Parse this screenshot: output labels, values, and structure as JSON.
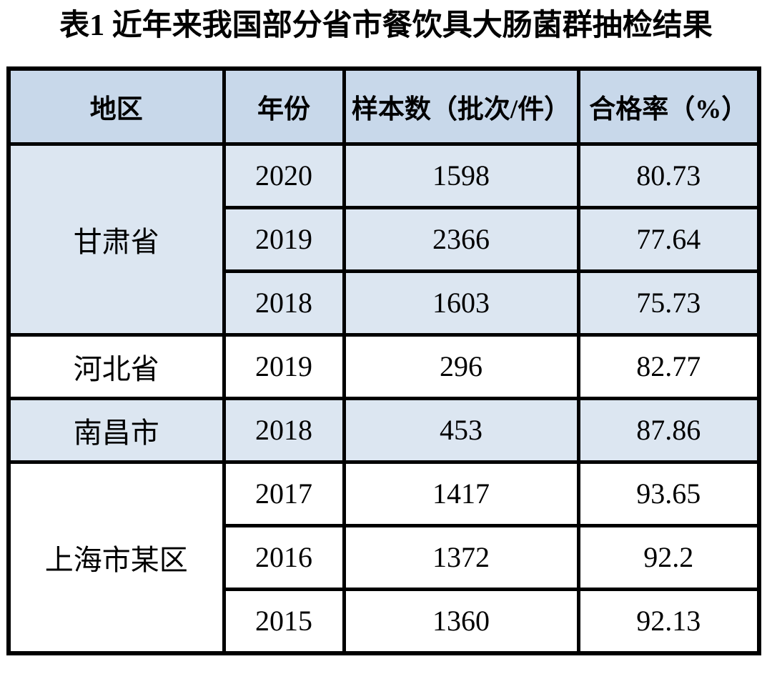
{
  "title": "表1 近年来我国部分省市餐饮具大肠菌群抽检结果",
  "table": {
    "columns": [
      "地区",
      "年份",
      "样本数（批次/件）",
      "合格率（%）"
    ],
    "groups": [
      {
        "region": "甘肃省",
        "shaded": true,
        "rows": [
          {
            "year": "2020",
            "samples": "1598",
            "pass_rate": "80.73"
          },
          {
            "year": "2019",
            "samples": "2366",
            "pass_rate": "77.64"
          },
          {
            "year": "2018",
            "samples": "1603",
            "pass_rate": "75.73"
          }
        ]
      },
      {
        "region": "河北省",
        "shaded": false,
        "rows": [
          {
            "year": "2019",
            "samples": "296",
            "pass_rate": "82.77"
          }
        ]
      },
      {
        "region": "南昌市",
        "shaded": true,
        "rows": [
          {
            "year": "2018",
            "samples": "453",
            "pass_rate": "87.86"
          }
        ]
      },
      {
        "region": "上海市某区",
        "shaded": false,
        "rows": [
          {
            "year": "2017",
            "samples": "1417",
            "pass_rate": "93.65"
          },
          {
            "year": "2016",
            "samples": "1372",
            "pass_rate": "92.2"
          },
          {
            "year": "2015",
            "samples": "1360",
            "pass_rate": "92.13"
          }
        ]
      }
    ],
    "colors": {
      "header_bg": "#c8d8ea",
      "shaded_row_bg": "#dce6f1",
      "plain_row_bg": "#ffffff",
      "border": "#000000",
      "text": "#000000"
    }
  },
  "chart_data": {
    "type": "table",
    "title": "表1 近年来我国部分省市餐饮具大肠菌群抽检结果",
    "columns": [
      "地区",
      "年份",
      "样本数（批次/件）",
      "合格率（%）"
    ],
    "rows": [
      [
        "甘肃省",
        2020,
        1598,
        80.73
      ],
      [
        "甘肃省",
        2019,
        2366,
        77.64
      ],
      [
        "甘肃省",
        2018,
        1603,
        75.73
      ],
      [
        "河北省",
        2019,
        296,
        82.77
      ],
      [
        "南昌市",
        2018,
        453,
        87.86
      ],
      [
        "上海市某区",
        2017,
        1417,
        93.65
      ],
      [
        "上海市某区",
        2016,
        1372,
        92.2
      ],
      [
        "上海市某区",
        2015,
        1360,
        92.13
      ]
    ]
  }
}
